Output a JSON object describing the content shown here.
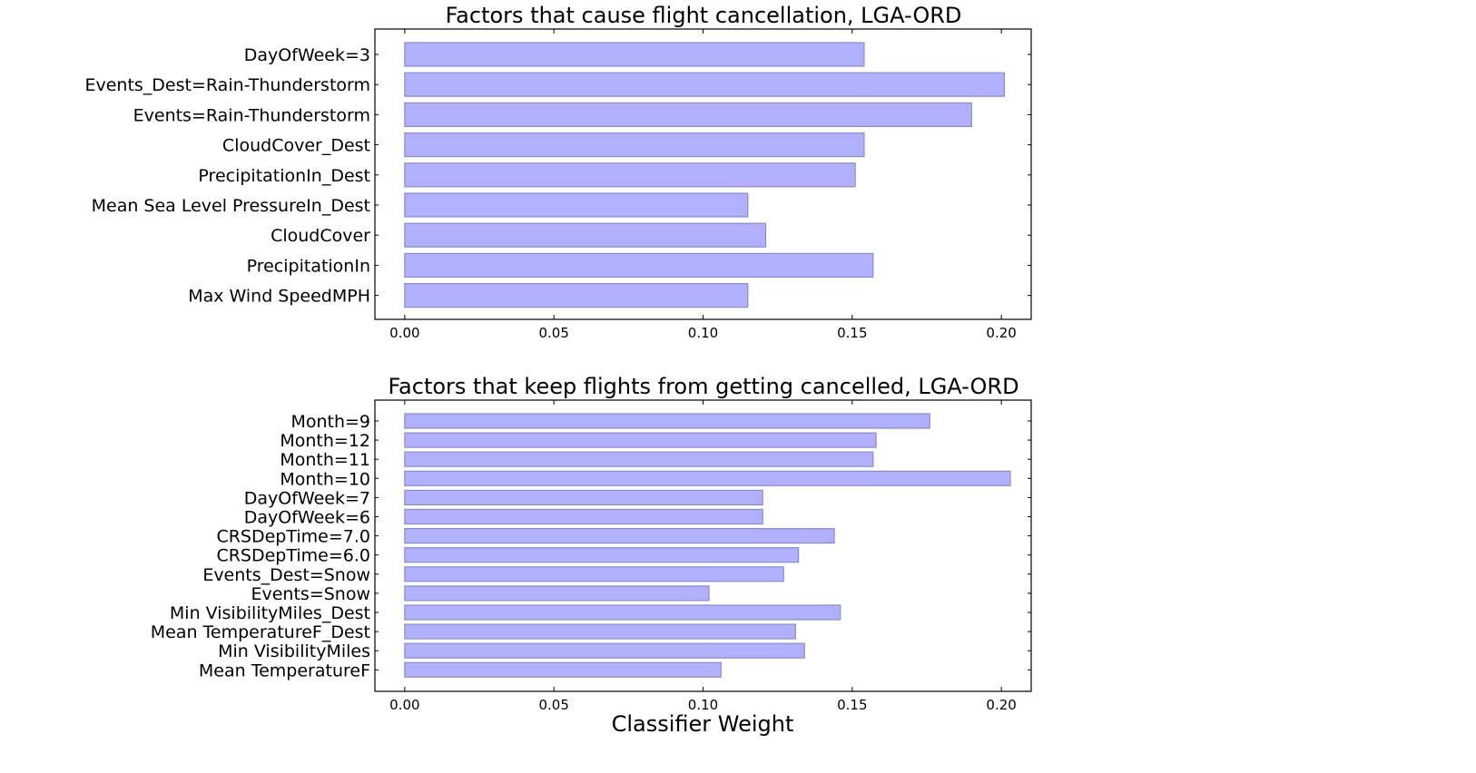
{
  "figure": {
    "xlabel": "Classifier Weight",
    "bar_color": "#b0b0ff",
    "bar_edge_color": "#8a8ad6"
  },
  "chart_data": [
    {
      "type": "bar",
      "orientation": "horizontal",
      "title": "Factors that cause flight cancellation, LGA-ORD",
      "xlabel": "",
      "ylabel": "",
      "xlim": [
        -0.01,
        0.21
      ],
      "xticks": [
        0.0,
        0.05,
        0.1,
        0.15,
        0.2
      ],
      "xtick_labels": [
        "0.00",
        "0.05",
        "0.10",
        "0.15",
        "0.20"
      ],
      "grid": false,
      "categories": [
        "DayOfWeek=3",
        "Events_Dest=Rain-Thunderstorm",
        "Events=Rain-Thunderstorm",
        "CloudCover_Dest",
        "PrecipitationIn_Dest",
        "Mean Sea Level PressureIn_Dest",
        "CloudCover",
        "PrecipitationIn",
        "Max Wind SpeedMPH"
      ],
      "values": [
        0.154,
        0.201,
        0.19,
        0.154,
        0.151,
        0.115,
        0.121,
        0.157,
        0.115
      ]
    },
    {
      "type": "bar",
      "orientation": "horizontal",
      "title": "Factors that keep flights from getting cancelled, LGA-ORD",
      "xlabel": "Classifier Weight",
      "ylabel": "",
      "xlim": [
        -0.01,
        0.21
      ],
      "xticks": [
        0.0,
        0.05,
        0.1,
        0.15,
        0.2
      ],
      "xtick_labels": [
        "0.00",
        "0.05",
        "0.10",
        "0.15",
        "0.20"
      ],
      "grid": false,
      "categories": [
        "Month=9",
        "Month=12",
        "Month=11",
        "Month=10",
        "DayOfWeek=7",
        "DayOfWeek=6",
        "CRSDepTime=7.0",
        "CRSDepTime=6.0",
        "Events_Dest=Snow",
        "Events=Snow",
        "Min VisibilityMiles_Dest",
        "Mean TemperatureF_Dest",
        "Min VisibilityMiles",
        "Mean TemperatureF"
      ],
      "values": [
        0.176,
        0.158,
        0.157,
        0.203,
        0.12,
        0.12,
        0.144,
        0.132,
        0.127,
        0.102,
        0.146,
        0.131,
        0.134,
        0.106
      ]
    }
  ]
}
